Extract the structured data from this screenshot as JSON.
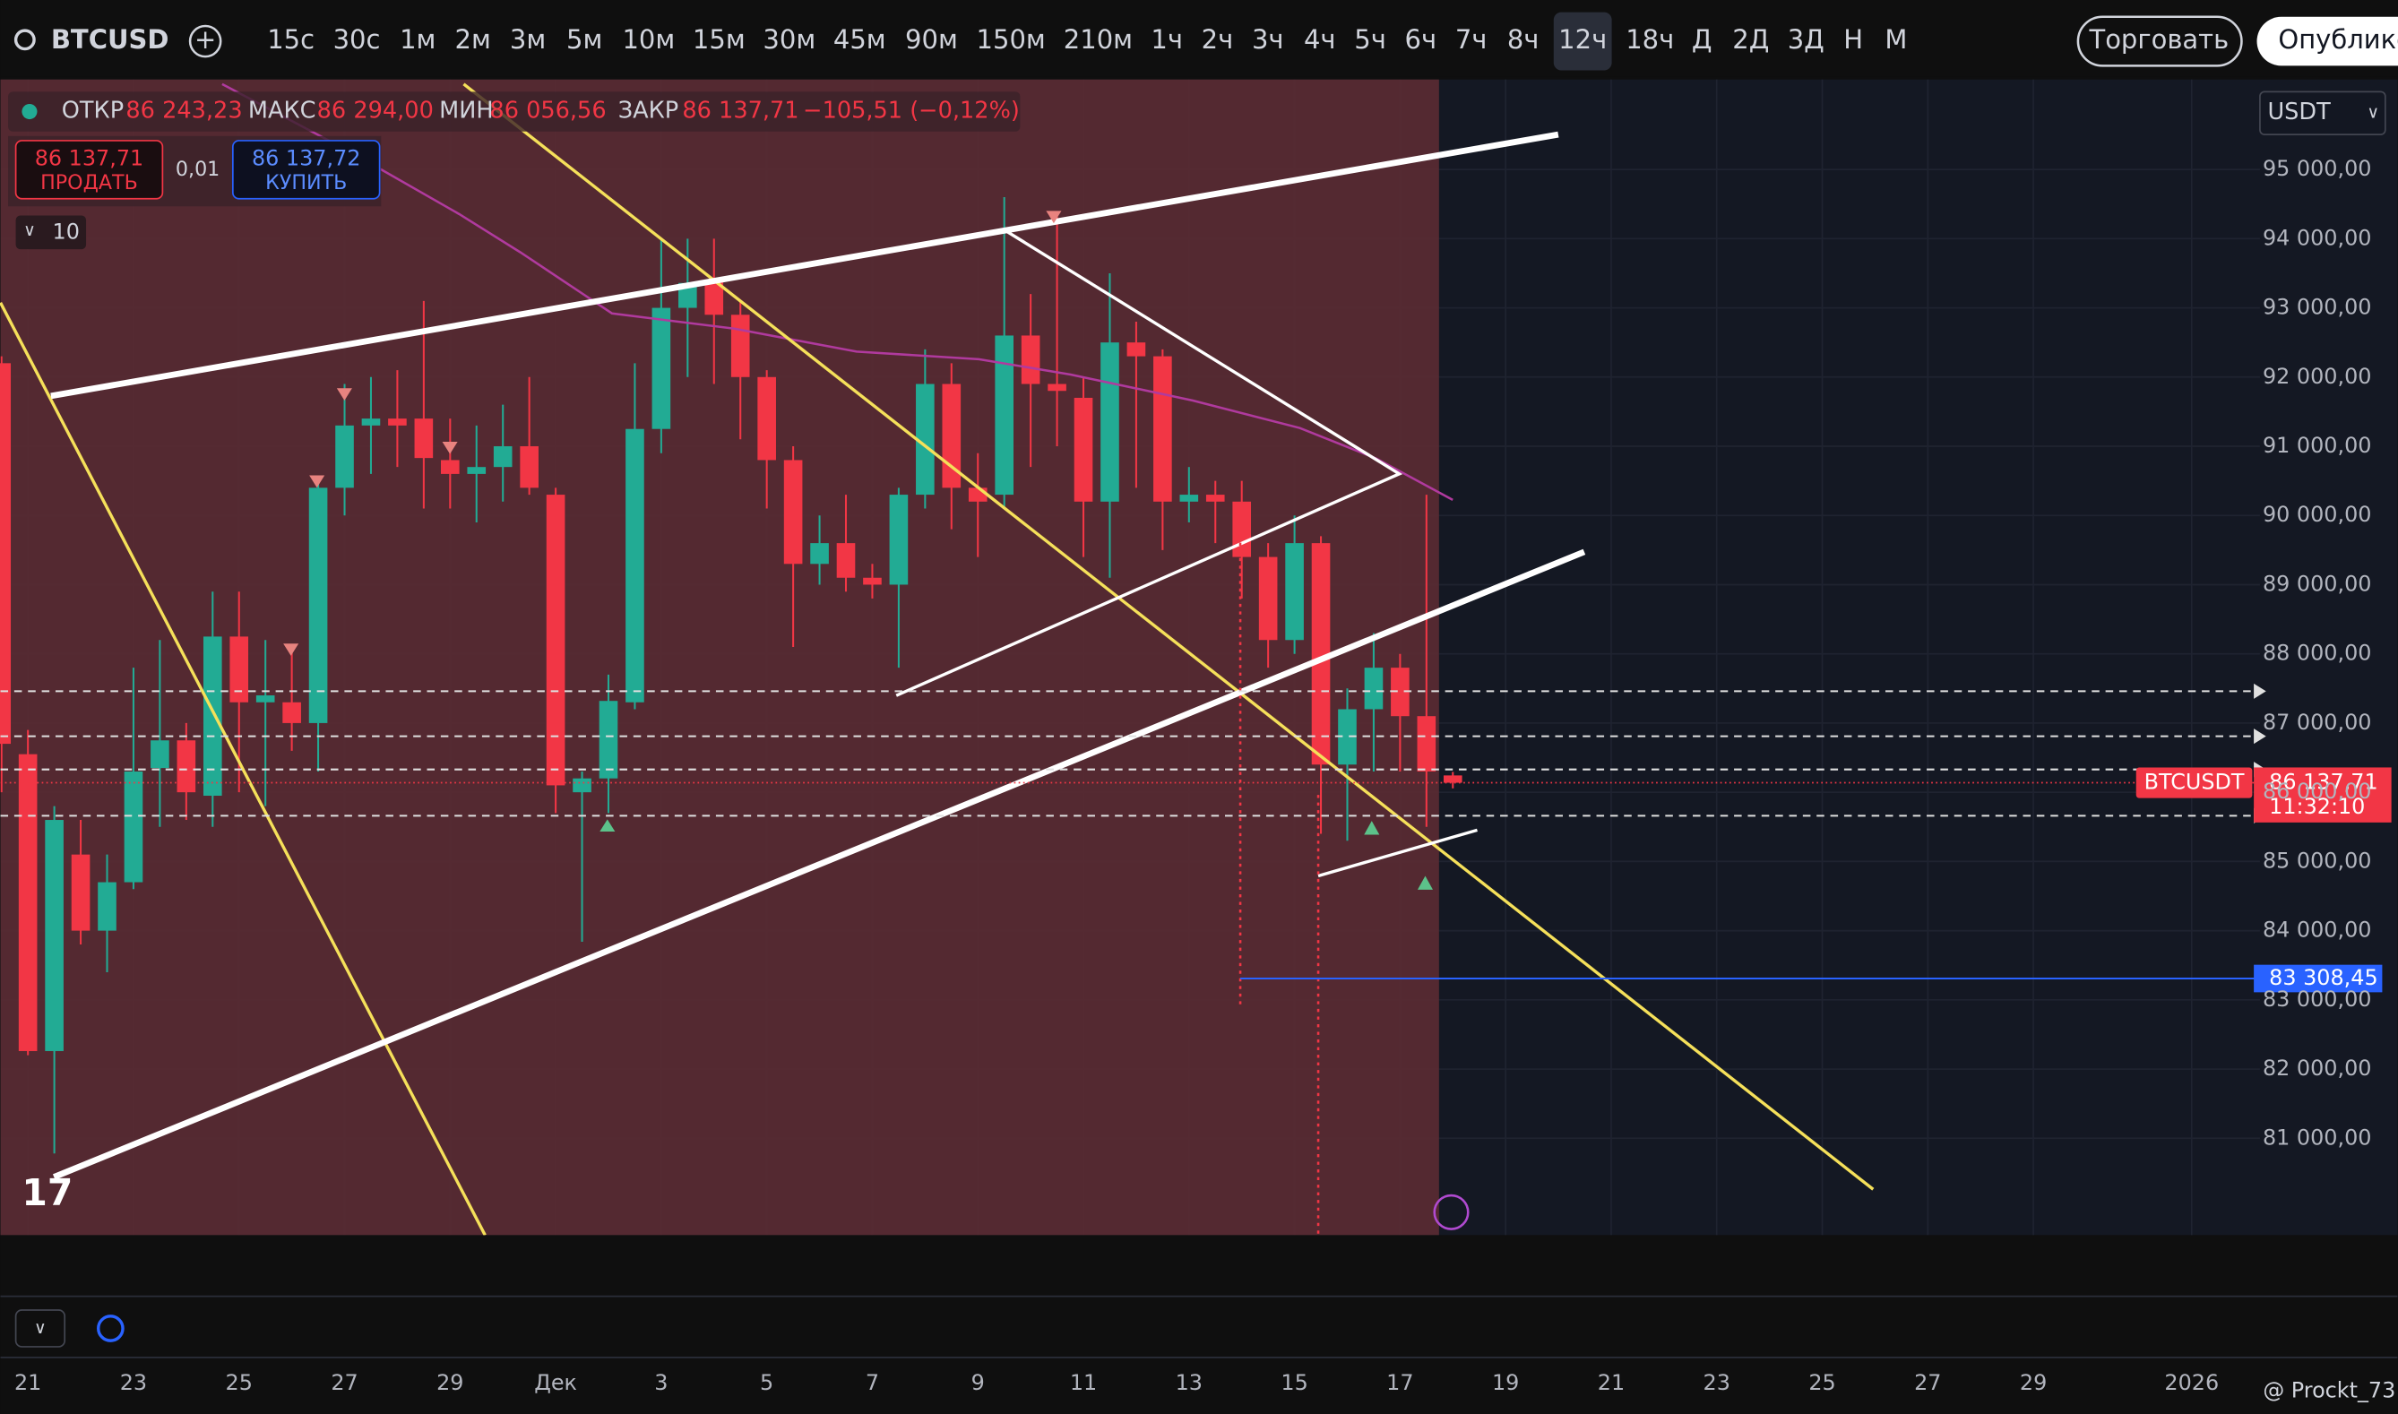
{
  "ui": {
    "symbol": "BTCUSD",
    "timeframes": [
      "15с",
      "30с",
      "1м",
      "2м",
      "3м",
      "5м",
      "10м",
      "15м",
      "30м",
      "45м",
      "90м",
      "150м",
      "210м",
      "1ч",
      "2ч",
      "3ч",
      "4ч",
      "5ч",
      "6ч",
      "7ч",
      "8ч",
      "12ч",
      "18ч",
      "Д",
      "2Д",
      "3Д",
      "Н",
      "М"
    ],
    "active_timeframe": "12ч",
    "trade_button": "Торговать",
    "publish_button": "Опублико",
    "legend": {
      "open_label": "ОТКР",
      "open": "86 243,23",
      "high_label": "МАКС",
      "high": "86 294,00",
      "low_label": "МИН",
      "low": "86 056,56",
      "close_label": "ЗАКР",
      "close": "86 137,71",
      "change": "−105,51 (−0,12%)"
    },
    "sell_price": "86 137,71",
    "sell_label": "ПРОДАТЬ",
    "spread": "0,01",
    "buy_price": "86 137,72",
    "buy_label": "КУПИТЬ",
    "indicators_count": "10",
    "currency": "USDT",
    "watermark": "@ Prockt_73"
  },
  "chart_data": {
    "type": "candlestick",
    "up_color": "#22ab94",
    "down_color": "#f23645",
    "x": [
      -0.5,
      0,
      0.5,
      1,
      1.5,
      2,
      2.5,
      3,
      3.5,
      4,
      4.5,
      5,
      5.5,
      6,
      6.5,
      7,
      7.5,
      8,
      8.5,
      9,
      9.5,
      10,
      10.5,
      11,
      11.5,
      12,
      12.5,
      13,
      13.5,
      14,
      14.5,
      15,
      15.5,
      16,
      16.5,
      17,
      17.5,
      18,
      18.5,
      19,
      19.5,
      20,
      20.5,
      21,
      21.5,
      22,
      22.5,
      23,
      23.5,
      24,
      24.5,
      25,
      25.5,
      26,
      26.5,
      27
    ],
    "open": [
      92200,
      86550,
      82260,
      85100,
      84000,
      84700,
      86350,
      86750,
      85950,
      88250,
      87300,
      87300,
      87000,
      90400,
      91300,
      91400,
      91400,
      90800,
      90600,
      90700,
      91000,
      90300,
      86000,
      86200,
      87300,
      91250,
      93000,
      93400,
      92900,
      92000,
      90800,
      89300,
      89600,
      89100,
      89000,
      90300,
      91900,
      90400,
      90300,
      92600,
      91900,
      91700,
      90200,
      92500,
      92300,
      90200,
      90300,
      90200,
      89400,
      88200,
      89600,
      86400,
      87200,
      87800,
      87100,
      86243.23
    ],
    "high": [
      92300,
      86900,
      85800,
      85600,
      85100,
      87800,
      88200,
      87000,
      88900,
      88900,
      88200,
      88100,
      90500,
      91900,
      92000,
      92100,
      93100,
      91400,
      91300,
      91600,
      92000,
      90400,
      86300,
      87700,
      92200,
      94000,
      94000,
      94000,
      93100,
      92100,
      91000,
      90000,
      90300,
      89300,
      90400,
      92400,
      92200,
      90900,
      94600,
      93200,
      94400,
      92000,
      93500,
      92800,
      92400,
      90700,
      90500,
      90500,
      89600,
      90000,
      89700,
      87500,
      88300,
      88000,
      90300,
      86294.0
    ],
    "low": [
      86000,
      82200,
      80780,
      83800,
      83400,
      84600,
      85500,
      85600,
      85500,
      86000,
      85800,
      86600,
      86300,
      90000,
      90600,
      90700,
      90100,
      90100,
      89900,
      90200,
      90300,
      85700,
      83840,
      85700,
      87200,
      90900,
      92000,
      91900,
      91100,
      90100,
      88100,
      89000,
      88900,
      88800,
      87800,
      90100,
      89800,
      89400,
      90100,
      90700,
      91000,
      89400,
      89100,
      90400,
      89500,
      89900,
      89600,
      88800,
      87800,
      88000,
      85400,
      85300,
      86300,
      86300,
      85500,
      86056.56
    ],
    "close": [
      86700,
      82260,
      85600,
      84000,
      84700,
      86300,
      86750,
      86000,
      88250,
      87300,
      87400,
      87000,
      90400,
      91300,
      91400,
      91300,
      90830,
      90600,
      90700,
      91000,
      90400,
      86100,
      86200,
      87320,
      91250,
      93000,
      93360,
      92900,
      92000,
      90800,
      89300,
      89600,
      89100,
      89000,
      90300,
      91900,
      90400,
      90200,
      92600,
      91900,
      91800,
      90200,
      92500,
      92300,
      90200,
      90300,
      90200,
      89400,
      88200,
      89600,
      86400,
      87200,
      87800,
      87100,
      86300,
      86137.71
    ],
    "ylim": [
      79600,
      96300
    ],
    "yticks": [
      {
        "value": 81000,
        "label": "81 000,00"
      },
      {
        "value": 82000,
        "label": "82 000,00"
      },
      {
        "value": 83000,
        "label": "83 000,00"
      },
      {
        "value": 84000,
        "label": "84 000,00"
      },
      {
        "value": 85000,
        "label": "85 000,00"
      },
      {
        "value": 86000,
        "label": "86 000,00"
      },
      {
        "value": 87000,
        "label": "87 000,00"
      },
      {
        "value": 88000,
        "label": "88 000,00"
      },
      {
        "value": 89000,
        "label": "89 000,00"
      },
      {
        "value": 90000,
        "label": "90 000,00"
      },
      {
        "value": 91000,
        "label": "91 000,00"
      },
      {
        "value": 92000,
        "label": "92 000,00"
      },
      {
        "value": 93000,
        "label": "93 000,00"
      },
      {
        "value": 94000,
        "label": "94 000,00"
      },
      {
        "value": 95000,
        "label": "95 000,00"
      }
    ],
    "xlim": [
      -0.52,
      44.9
    ],
    "xticks": [
      {
        "value": 0,
        "label": "21"
      },
      {
        "value": 2,
        "label": "23"
      },
      {
        "value": 4,
        "label": "25"
      },
      {
        "value": 6,
        "label": "27"
      },
      {
        "value": 8,
        "label": "29"
      },
      {
        "value": 10,
        "label": "Дек"
      },
      {
        "value": 12,
        "label": "3"
      },
      {
        "value": 14,
        "label": "5"
      },
      {
        "value": 16,
        "label": "7"
      },
      {
        "value": 18,
        "label": "9"
      },
      {
        "value": 20,
        "label": "11"
      },
      {
        "value": 22,
        "label": "13"
      },
      {
        "value": 24,
        "label": "15"
      },
      {
        "value": 26,
        "label": "17"
      },
      {
        "value": 28,
        "label": "19"
      },
      {
        "value": 30,
        "label": "21"
      },
      {
        "value": 32,
        "label": "23"
      },
      {
        "value": 34,
        "label": "25"
      },
      {
        "value": 36,
        "label": "27"
      },
      {
        "value": 38,
        "label": "29"
      },
      {
        "value": 41,
        "label": "2026"
      }
    ],
    "grid": true,
    "levels": [
      87460,
      86810,
      86330,
      85660
    ],
    "last_price": {
      "value": 86137.71,
      "label": "86 137,71"
    },
    "countdown": "11:32:10",
    "symbol_tag": "BTCUSDT",
    "price_line": {
      "value": 83308.45,
      "label": "83 308,45"
    }
  }
}
